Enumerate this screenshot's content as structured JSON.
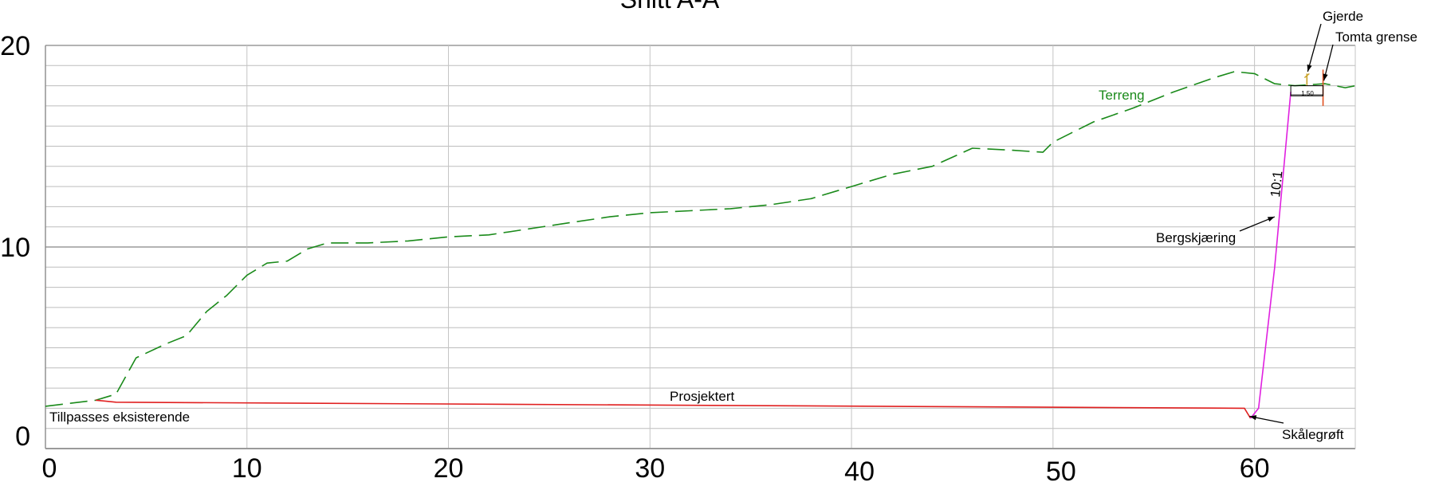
{
  "title": "Snitt A-A",
  "chart_data": {
    "type": "line",
    "title": "Snitt A-A",
    "xlabel": "",
    "ylabel": "",
    "xlim": [
      0,
      65
    ],
    "ylim": [
      0,
      20
    ],
    "x_ticks": [
      "0",
      "10",
      "20",
      "30",
      "40",
      "50",
      "60"
    ],
    "y_ticks": [
      "0",
      "10",
      "20"
    ],
    "grid": true,
    "series": [
      {
        "name": "Terreng",
        "style": "dashed",
        "color": "#1a8a1a",
        "points": [
          [
            0,
            2.1
          ],
          [
            2.5,
            2.4
          ],
          [
            3.5,
            2.7
          ],
          [
            4.5,
            4.5
          ],
          [
            6,
            5.2
          ],
          [
            7,
            5.6
          ],
          [
            8,
            6.8
          ],
          [
            9,
            7.6
          ],
          [
            10,
            8.6
          ],
          [
            11,
            9.2
          ],
          [
            12,
            9.3
          ],
          [
            13,
            9.9
          ],
          [
            14,
            10.2
          ],
          [
            16,
            10.2
          ],
          [
            18,
            10.3
          ],
          [
            20,
            10.5
          ],
          [
            22,
            10.6
          ],
          [
            24,
            10.9
          ],
          [
            26,
            11.2
          ],
          [
            28,
            11.5
          ],
          [
            30,
            11.7
          ],
          [
            32,
            11.8
          ],
          [
            34,
            11.9
          ],
          [
            36,
            12.1
          ],
          [
            38,
            12.4
          ],
          [
            40,
            13.0
          ],
          [
            42,
            13.6
          ],
          [
            44,
            14.0
          ],
          [
            46,
            14.9
          ],
          [
            48,
            14.8
          ],
          [
            49.5,
            14.7
          ],
          [
            50,
            15.2
          ],
          [
            52,
            16.2
          ],
          [
            54,
            16.9
          ],
          [
            56,
            17.7
          ],
          [
            58,
            18.4
          ],
          [
            59,
            18.7
          ],
          [
            60,
            18.6
          ],
          [
            61,
            18.1
          ],
          [
            62,
            18.0
          ],
          [
            63.5,
            18.1
          ],
          [
            64.5,
            17.9
          ],
          [
            65,
            18.0
          ]
        ]
      },
      {
        "name": "Prosjektert",
        "style": "solid",
        "color": "#e02020",
        "points": [
          [
            2.5,
            2.4
          ],
          [
            3.5,
            2.3
          ],
          [
            59.5,
            2.0
          ],
          [
            59.8,
            1.5
          ]
        ]
      },
      {
        "name": "Bergskjæring",
        "style": "solid",
        "color": "#e020e0",
        "points": [
          [
            59.8,
            1.5
          ],
          [
            60.2,
            2.0
          ],
          [
            61,
            9.0
          ],
          [
            61.8,
            17.7
          ]
        ]
      }
    ],
    "annotations": [
      {
        "text": "Terreng",
        "color": "#1a8a1a"
      },
      {
        "text": "Prosjektert"
      },
      {
        "text": "Tillpasses eksisterende"
      },
      {
        "text": "Bergskjæring"
      },
      {
        "text": "10:1"
      },
      {
        "text": "Skålegrøft"
      },
      {
        "text": "Gjerde"
      },
      {
        "text": "Tomta grense"
      },
      {
        "text": "1.50"
      }
    ],
    "fence": {
      "x": 62.6,
      "top": 18.6,
      "color": "#c9a227"
    },
    "property_boundary": {
      "x": 63.4,
      "bottom": 17.0,
      "top": 18.8,
      "color": "#e05020"
    }
  }
}
